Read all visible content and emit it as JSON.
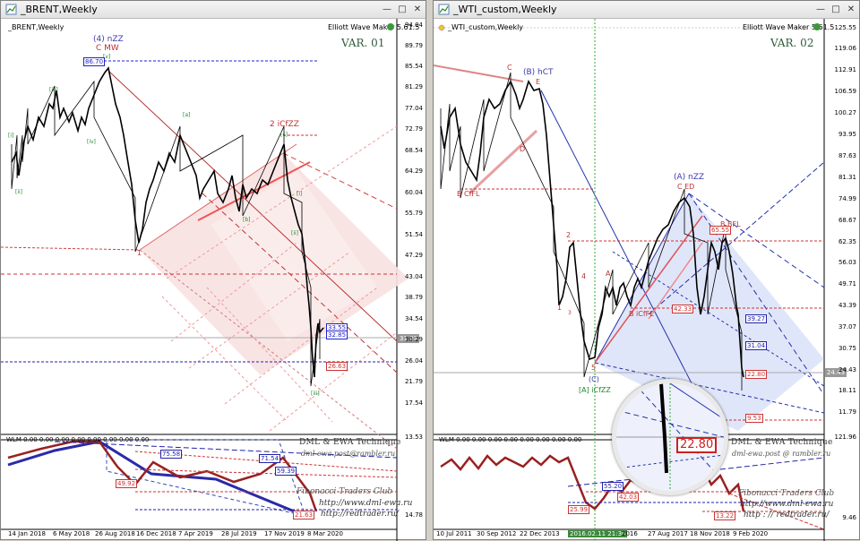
{
  "left_window": {
    "title": "_BRENT,Weekly",
    "symbol_label": "_BRENT,Weekly",
    "ewm_label": "Elliott Wave Maker 5.61.5",
    "var_label": "VAR. 01",
    "y_axis": [
      "94.04",
      "89.79",
      "85.54",
      "81.29",
      "77.04",
      "72.79",
      "68.54",
      "64.29",
      "60.04",
      "55.79",
      "51.54",
      "47.29",
      "43.04",
      "38.79",
      "34.54",
      "30.29",
      "26.04",
      "21.79",
      "17.54",
      "13.53"
    ],
    "ind_y_axis": [
      "14.78"
    ],
    "x_axis": [
      "14 Jan 2018",
      "6 May 2018",
      "26 Aug 2018",
      "16 Dec 2018",
      "7 Apr 2019",
      "28 Jul 2019",
      "17 Nov 2019",
      "8 Mar 2020"
    ],
    "wave_labels": {
      "w4": "(4) nZZ",
      "w4_sub": "C MW",
      "w2": "2 iCfZZ",
      "w1": "1",
      "v": "[v]",
      "iii_top": "[iii]",
      "iv": "[iv]",
      "i": "[i]",
      "ii": "[ii]",
      "a": "[a]",
      "b": "[b]",
      "c": "[c]",
      "i2": "[i]",
      "ii2": "[ii]",
      "iii_bottom": "[iii]"
    },
    "price_tags": {
      "top": "86.70",
      "r1": "33.55",
      "r2": "32.85",
      "r3": "26.63",
      "cur": "31.03"
    },
    "indicator": {
      "header": "WLM 0.00 0.00 0.00 0.00 0.00 0.00 0.00 0.00",
      "tags": [
        "75.58",
        "71.54",
        "59.39",
        "49.92",
        "21.63"
      ]
    },
    "watermark": {
      "head": "DML & EWA Technique",
      "email": "dml-ewa.post@rambler.ru",
      "club": "Fibonacci  Traders  Club",
      "link1": "http://www.dml-ewa.ru",
      "link2": "http://redtrader.ru/"
    }
  },
  "right_window": {
    "title": "_WTI_custom,Weekly",
    "symbol_label": "_WTI_custom,Weekly",
    "ewm_label": "Elliott Wave Maker 5.61.5",
    "var_label": "VAR. 02",
    "y_axis": [
      "125.55",
      "119.06",
      "112.91",
      "106.59",
      "100.27",
      "93.95",
      "87.63",
      "81.31",
      "74.99",
      "68.67",
      "62.35",
      "56.03",
      "49.71",
      "43.39",
      "37.07",
      "30.75",
      "24.43",
      "18.11",
      "11.79"
    ],
    "ind_y_axis": [
      "121.96",
      "9.46"
    ],
    "x_axis": [
      "10 Jul 2011",
      "30 Sep 2012",
      "22 Dec 2013",
      "2016.02.11 21:30",
      "2016",
      "27 Aug 2017",
      "18 Nov 2018",
      "9 Feb 2020"
    ],
    "wave_labels": {
      "c_top": "C",
      "b_hct": "(B) hCT",
      "e": "E",
      "d": "D",
      "b_cfl": "B CfFL",
      "n1": "1",
      "n2": "2",
      "n3": "3",
      "n4": "4",
      "n5": "5",
      "a": "A",
      "b_icfl": "B iCfFL",
      "c_zz": "(C)",
      "a_zz": "[A] iCfZZ",
      "a_nzz": "(A) nZZ",
      "c_ed": "C ED",
      "b_bfl": "B BFL"
    },
    "price_tags": {
      "t1": "65.55",
      "t2": "42.33",
      "t3": "39.27",
      "t4": "31.04",
      "t5": "22.80",
      "t6": "9.53",
      "cur": "24.43"
    },
    "indicator": {
      "header": "WLM 0.00 0.00 0.00 0.00 0.00 0.00 0.00 0.00",
      "tags": [
        "55.20",
        "42.03",
        "25.99",
        "13.22"
      ]
    },
    "magnifier_value": "22.80",
    "watermark": {
      "head": "DML & EWA Technique",
      "email": "dml-ewa.post @ rambler.ru",
      "club": "Fibonacci  Traders  Club",
      "link1": "http://www.dml-ewa.ru",
      "link2": "http : // redtrader.ru/"
    }
  },
  "colors": {
    "bull_wave": "#3a3ab0",
    "bear_wave": "#c0392b",
    "green_wave": "#1f8a2a",
    "fork_fill": "#f7dcdc",
    "fork_fill_blue": "#dde2f7",
    "red_tag": "#d22",
    "blue_tag": "#2233cc"
  }
}
